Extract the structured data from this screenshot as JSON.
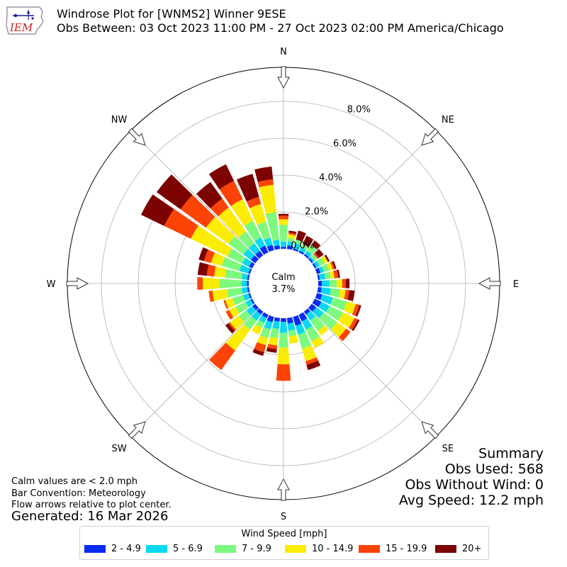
{
  "header": {
    "title_line1": "Windrose Plot for [WNMS2] Winner 9ESE",
    "title_line2": "Obs Between: 03 Oct 2023 11:00 PM - 27 Oct 2023 02:00 PM America/Chicago",
    "logo_text": "IEM"
  },
  "footer": {
    "calm_note": "Calm values are < 2.0 mph",
    "bar_convention": "Bar Convention: Meteorology",
    "flow_note": "Flow arrows relative to plot center.",
    "generated": "Generated: 16 Mar 2026"
  },
  "summary": {
    "title": "Summary",
    "obs_used": "Obs Used: 568",
    "obs_without_wind": "Obs Without Wind: 0",
    "avg_speed": "Avg Speed: 12.2 mph"
  },
  "legend": {
    "title": "Wind Speed [mph]",
    "items": [
      {
        "label": "2 - 4.9",
        "color": "#0a2cf5"
      },
      {
        "label": "5 - 6.9",
        "color": "#0ad8f0"
      },
      {
        "label": "7 - 9.9",
        "color": "#7dfa7e"
      },
      {
        "label": "10 - 14.9",
        "color": "#fbec06"
      },
      {
        "label": "15 - 19.9",
        "color": "#fc4307"
      },
      {
        "label": "20+",
        "color": "#7d0300"
      }
    ]
  },
  "chart_data": {
    "type": "windrose",
    "calm_label": "Calm",
    "calm_value": "3.7%",
    "direction_labels": [
      "N",
      "NE",
      "E",
      "SE",
      "S",
      "SW",
      "W",
      "NW"
    ],
    "radial_ticks": [
      "0.0%",
      "2.0%",
      "4.0%",
      "6.0%",
      "8.0%"
    ],
    "radial_max": 9.5,
    "bar_convention": "meteorology",
    "speed_bins": [
      "2 - 4.9",
      "5 - 6.9",
      "7 - 9.9",
      "10 - 14.9",
      "15 - 19.9",
      "20+"
    ],
    "sector_width_deg": 10,
    "directions_deg": [
      0,
      10,
      20,
      30,
      40,
      50,
      60,
      70,
      80,
      90,
      100,
      110,
      120,
      130,
      140,
      150,
      160,
      170,
      180,
      190,
      200,
      210,
      220,
      230,
      240,
      250,
      260,
      270,
      280,
      290,
      300,
      310,
      320,
      330,
      340,
      350
    ],
    "series": [
      {
        "name": "2 - 4.9",
        "values": [
          0.1,
          0.2,
          0.1,
          0.1,
          0.1,
          0.1,
          0.1,
          0.2,
          0.1,
          0.2,
          0.2,
          0.3,
          0.4,
          0.3,
          0.2,
          0.4,
          0.5,
          0.3,
          0.2,
          0.2,
          0.3,
          0.2,
          0.2,
          0.2,
          0.1,
          0.1,
          0.1,
          0.1,
          0.1,
          0.1,
          0.2,
          0.3,
          0.3,
          0.4,
          0.3,
          0.2
        ]
      },
      {
        "name": "5 - 6.9",
        "values": [
          0.3,
          0.2,
          0.3,
          0.2,
          0.2,
          0.1,
          0.2,
          0.2,
          0.3,
          0.4,
          0.5,
          0.6,
          0.5,
          0.5,
          0.4,
          0.5,
          0.5,
          0.4,
          0.6,
          0.4,
          0.4,
          0.3,
          0.4,
          0.4,
          0.3,
          0.3,
          0.3,
          0.3,
          0.3,
          0.5,
          0.4,
          0.5,
          0.5,
          0.5,
          0.4,
          0.3
        ]
      },
      {
        "name": "7 - 9.9",
        "values": [
          0.9,
          0.2,
          0.2,
          0.2,
          0.4,
          0.2,
          0.3,
          0.3,
          0.3,
          0.4,
          0.5,
          0.8,
          0.8,
          0.9,
          0.7,
          0.7,
          0.8,
          0.3,
          0.8,
          0.5,
          0.5,
          0.3,
          0.6,
          0.5,
          0.6,
          0.6,
          0.8,
          1.2,
          0.9,
          1.0,
          0.9,
          1.0,
          0.8,
          1.0,
          0.9,
          1.5
        ]
      },
      {
        "name": "10 - 14.9",
        "values": [
          0.3,
          0.2,
          0.0,
          0.0,
          0.0,
          0.0,
          0.2,
          0.2,
          0.2,
          0.3,
          0.3,
          0.5,
          0.7,
          0.6,
          0.3,
          0.4,
          0.7,
          0.4,
          0.9,
          0.4,
          0.4,
          0.4,
          1.4,
          0.6,
          0.4,
          0.4,
          0.8,
          0.9,
          0.6,
          0.6,
          2.2,
          1.5,
          1.6,
          1.3,
          1.0,
          1.5
        ]
      },
      {
        "name": "15 - 19.9",
        "values": [
          0.2,
          0.1,
          0.0,
          0.0,
          0.0,
          0.1,
          0.0,
          0.1,
          0.2,
          0.2,
          0.2,
          0.2,
          0.2,
          0.3,
          0.0,
          0.0,
          0.2,
          0.0,
          0.9,
          0.2,
          0.4,
          0.0,
          1.3,
          0.1,
          0.2,
          0.1,
          0.2,
          0.3,
          0.4,
          0.4,
          1.6,
          1.7,
          0.6,
          1.1,
          0.4,
          0.3
        ]
      },
      {
        "name": "20+",
        "values": [
          0.1,
          0.1,
          0.5,
          0.5,
          0.3,
          0.3,
          0.1,
          0.1,
          0.1,
          0.2,
          0.3,
          0.1,
          0.1,
          0.0,
          0.0,
          0.0,
          0.3,
          0.0,
          0.0,
          0.2,
          0.2,
          0.0,
          0.0,
          0.2,
          0.0,
          0.0,
          0.0,
          0.0,
          0.5,
          0.3,
          1.4,
          1.6,
          1.1,
          1.0,
          1.3,
          0.7
        ]
      }
    ]
  }
}
